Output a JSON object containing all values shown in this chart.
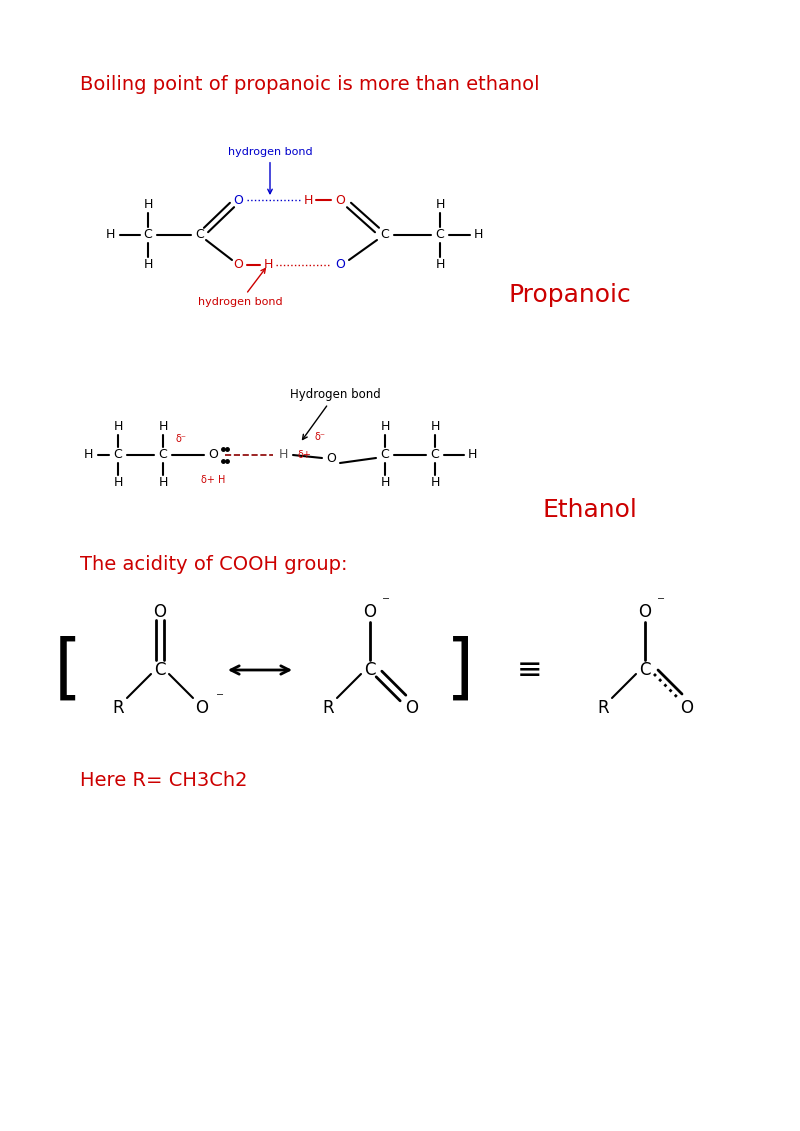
{
  "title1": "Boiling point of propanoic is more than ethanol",
  "title1_color": "#cc0000",
  "title2": "The acidity of COOH group:",
  "title2_color": "#cc0000",
  "title3": "Here R= CH3Ch2",
  "title3_color": "#cc0000",
  "propanoic_label": "Propanoic",
  "propanoic_color": "#cc0000",
  "ethanol_label": "Ethanol",
  "ethanol_color": "#cc0000",
  "blue_color": "#0000cc",
  "red_color": "#cc0000",
  "black_color": "#000000",
  "bg_color": "#ffffff"
}
